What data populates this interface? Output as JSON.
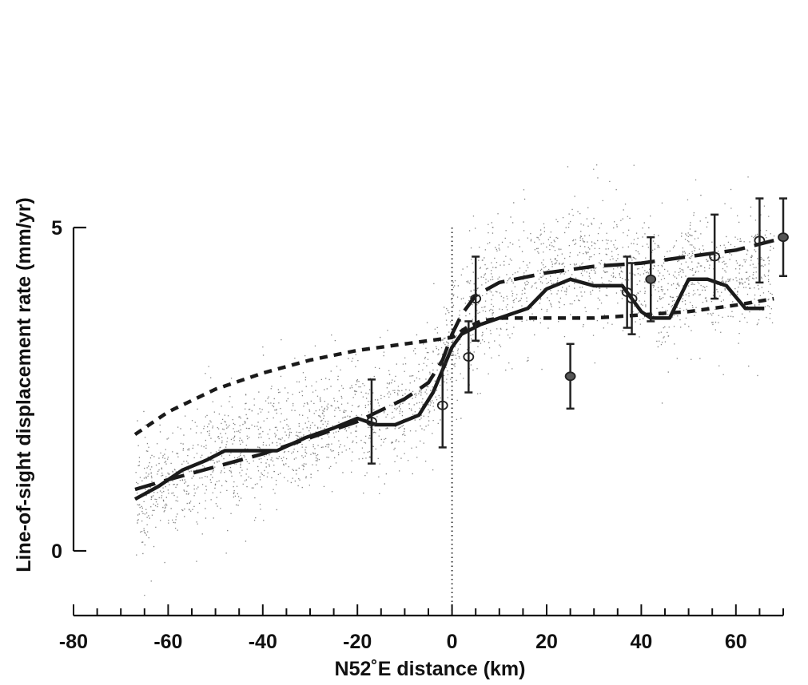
{
  "chart_data": {
    "type": "scatter",
    "title": "",
    "xlabel": "N52˚E distance (km)",
    "ylabel": "Line-of-sight displacement rate (mm/yr)",
    "xlim": [
      -80,
      70
    ],
    "ylim": [
      -0.9,
      5.0
    ],
    "x_ticks": [
      -80,
      -60,
      -40,
      -20,
      0,
      20,
      40,
      60
    ],
    "y_ticks": [
      0,
      5
    ],
    "grid": false,
    "legend": "none",
    "colors": {
      "scatter": "#808080",
      "line": "#1a1a1a",
      "background": "#ffffff"
    },
    "reference_line_x": 0,
    "scatter_band": {
      "description_free": true,
      "x_range": [
        -67,
        68
      ],
      "center": [
        [
          -67,
          0.8
        ],
        [
          -60,
          1.1
        ],
        [
          -50,
          1.45
        ],
        [
          -40,
          1.65
        ],
        [
          -30,
          1.85
        ],
        [
          -20,
          2.1
        ],
        [
          -10,
          2.2
        ],
        [
          -5,
          2.5
        ],
        [
          0,
          3.3
        ],
        [
          5,
          3.9
        ],
        [
          10,
          4.05
        ],
        [
          20,
          4.35
        ],
        [
          30,
          4.45
        ],
        [
          40,
          4.4
        ],
        [
          45,
          3.8
        ],
        [
          50,
          4.5
        ],
        [
          55,
          4.2
        ],
        [
          60,
          4.3
        ],
        [
          68,
          4.2
        ]
      ]
    },
    "series": [
      {
        "style": "solid",
        "x": [
          -67,
          -62,
          -57,
          -52,
          -48,
          -42,
          -37,
          -31,
          -25,
          -20,
          -16,
          -12,
          -7,
          -4,
          -2,
          0,
          2,
          6,
          10,
          16,
          20,
          25,
          30,
          36,
          40,
          42,
          46,
          50,
          54,
          58,
          62,
          66
        ],
        "y": [
          0.8,
          1.0,
          1.25,
          1.4,
          1.55,
          1.55,
          1.55,
          1.75,
          1.9,
          2.05,
          1.95,
          1.95,
          2.1,
          2.45,
          2.8,
          3.15,
          3.35,
          3.5,
          3.6,
          3.75,
          4.05,
          4.2,
          4.1,
          4.1,
          3.7,
          3.6,
          3.6,
          4.2,
          4.2,
          4.1,
          3.75,
          3.75
        ]
      },
      {
        "style": "long-dash",
        "x": [
          -67,
          -60,
          -50,
          -40,
          -30,
          -20,
          -10,
          -5,
          -2,
          0,
          2,
          5,
          10,
          20,
          30,
          40,
          50,
          60,
          68
        ],
        "y": [
          0.95,
          1.1,
          1.3,
          1.5,
          1.75,
          2.0,
          2.35,
          2.6,
          2.95,
          3.35,
          3.65,
          3.95,
          4.15,
          4.3,
          4.4,
          4.45,
          4.55,
          4.65,
          4.8
        ]
      },
      {
        "style": "short-dash",
        "x": [
          -67,
          -60,
          -50,
          -40,
          -30,
          -20,
          -10,
          -5,
          0,
          3,
          6,
          10,
          20,
          30,
          40,
          50,
          60,
          68
        ],
        "y": [
          1.8,
          2.15,
          2.5,
          2.75,
          2.95,
          3.1,
          3.2,
          3.25,
          3.3,
          3.45,
          3.55,
          3.6,
          3.6,
          3.6,
          3.65,
          3.7,
          3.8,
          3.9
        ]
      }
    ],
    "points": [
      {
        "x": -17,
        "y": 2.0,
        "err": 0.65,
        "filled": false
      },
      {
        "x": -2,
        "y": 2.25,
        "err": 0.65,
        "filled": false
      },
      {
        "x": 3.5,
        "y": 3.0,
        "err": 0.55,
        "filled": false
      },
      {
        "x": 5,
        "y": 3.9,
        "err": 0.65,
        "filled": false
      },
      {
        "x": 25,
        "y": 2.7,
        "err": 0.5,
        "filled": true
      },
      {
        "x": 37,
        "y": 4.0,
        "err": 0.55,
        "filled": false
      },
      {
        "x": 38,
        "y": 3.9,
        "err": 0.55,
        "filled": false
      },
      {
        "x": 42,
        "y": 4.2,
        "err": 0.65,
        "filled": true
      },
      {
        "x": 55.5,
        "y": 4.55,
        "err": 0.65,
        "filled": false
      },
      {
        "x": 65,
        "y": 4.8,
        "err": 0.65,
        "filled": false
      },
      {
        "x": 70,
        "y": 4.85,
        "err": 0.6,
        "filled": true
      }
    ]
  }
}
